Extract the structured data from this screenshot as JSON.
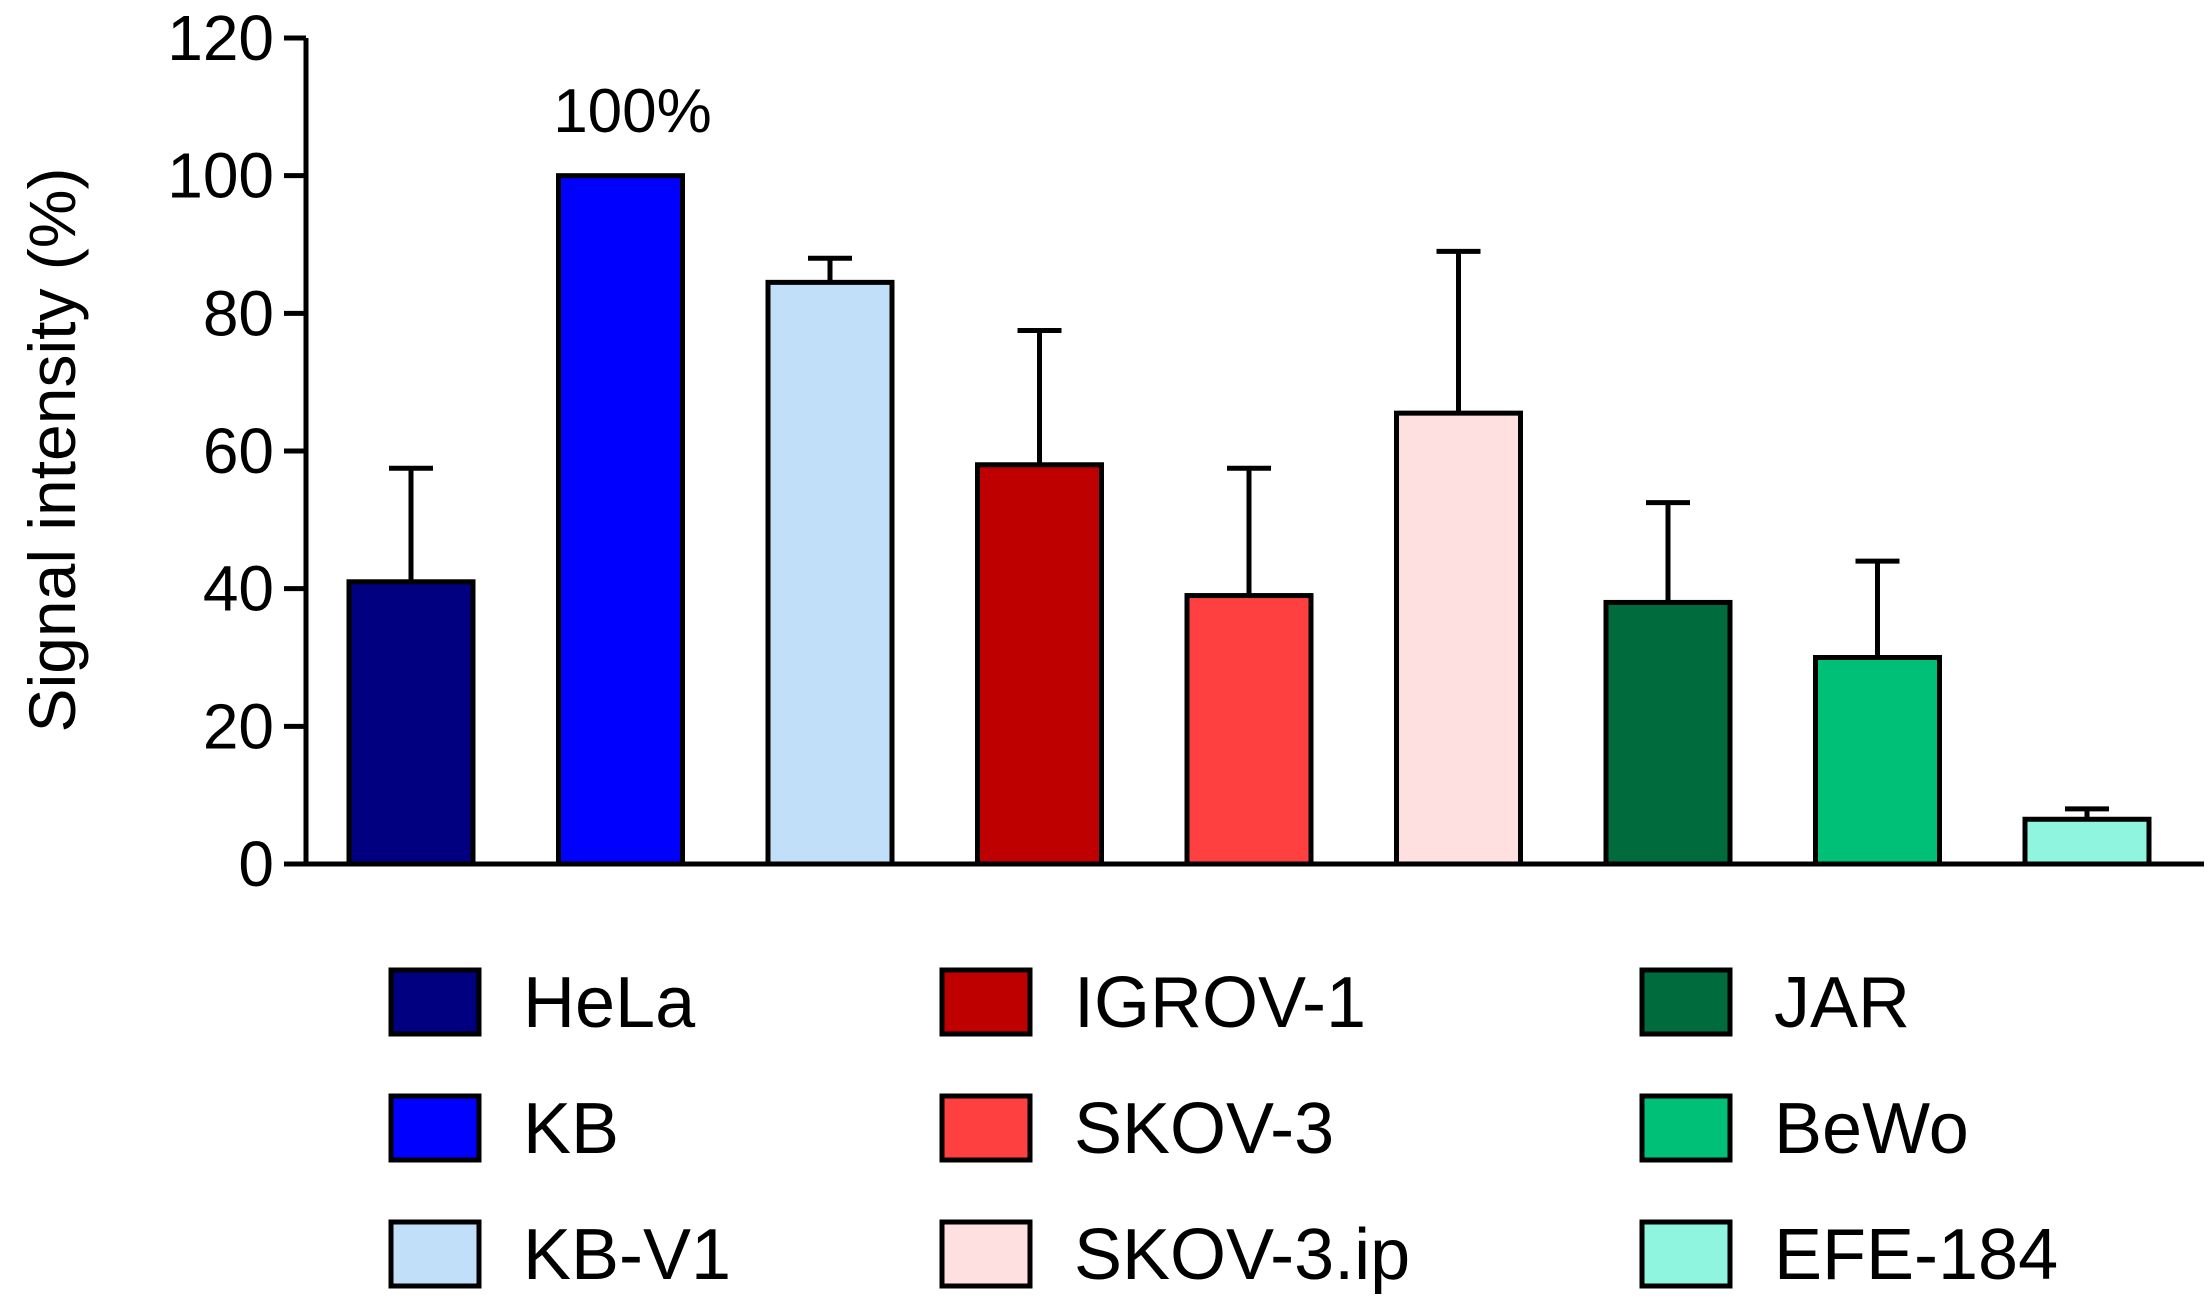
{
  "chart_data": {
    "type": "bar",
    "title": "",
    "xlabel": "",
    "ylabel": "Signal intensity (%)",
    "ylim": [
      0,
      120
    ],
    "yticks": [
      0,
      20,
      40,
      60,
      80,
      100,
      120
    ],
    "grid": false,
    "legend_position": "bottom",
    "categories": [
      "HeLa",
      "KB",
      "KB-V1",
      "IGROV-1",
      "SKOV-3",
      "SKOV-3.ip",
      "JAR",
      "BeWo",
      "EFE-184"
    ],
    "values": [
      41,
      100,
      84.5,
      58,
      39,
      65.5,
      38,
      30,
      6.5
    ],
    "errors": [
      16.5,
      0,
      3.5,
      19.5,
      18.5,
      23.5,
      14.5,
      14,
      1.5
    ],
    "colors": [
      "#000080",
      "#0000FF",
      "#C2DFFA",
      "#BF0000",
      "#FF4040",
      "#FFE0E0",
      "#006B3C",
      "#00BF77",
      "#90F5DE"
    ],
    "annotations": [
      {
        "category": "KB",
        "text": "100%"
      }
    ]
  }
}
